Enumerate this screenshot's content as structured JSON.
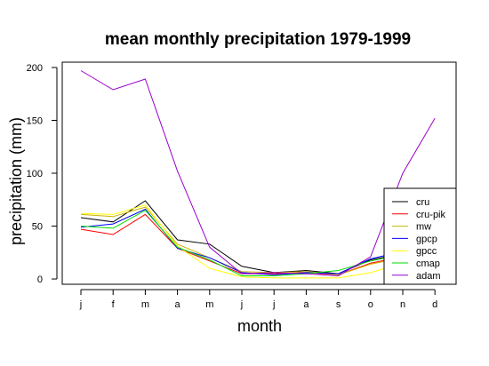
{
  "chart_data": {
    "type": "line",
    "title": "mean monthly precipitation 1979-1999",
    "xlabel": "month",
    "ylabel": "precipitation (mm)",
    "categories": [
      "j",
      "f",
      "m",
      "a",
      "m",
      "j",
      "j",
      "a",
      "s",
      "o",
      "n",
      "d"
    ],
    "yticks": [
      0,
      50,
      100,
      150,
      200
    ],
    "ylim": [
      -5,
      205
    ],
    "legend_position": "bottom-right",
    "grid": false,
    "series": [
      {
        "name": "cru",
        "color": "#000000",
        "values": [
          58,
          54,
          74,
          37,
          33,
          12,
          6,
          8,
          5,
          18,
          24,
          null
        ]
      },
      {
        "name": "cru-pik",
        "color": "#ff0000",
        "values": [
          47,
          42,
          61,
          29,
          17,
          5,
          5,
          6,
          4,
          15,
          21,
          null
        ]
      },
      {
        "name": "mw",
        "color": "#c8b400",
        "values": [
          61,
          59,
          68,
          33,
          20,
          7,
          6,
          7,
          4,
          14,
          20,
          null
        ]
      },
      {
        "name": "gpcp",
        "color": "#0000ff",
        "values": [
          49,
          52,
          66,
          29,
          20,
          6,
          4,
          6,
          5,
          19,
          26,
          null
        ]
      },
      {
        "name": "gpcc",
        "color": "#ffff00",
        "values": [
          62,
          61,
          70,
          31,
          10,
          2,
          1,
          1,
          1,
          6,
          15,
          null
        ]
      },
      {
        "name": "cmap",
        "color": "#00dd00",
        "values": [
          50,
          48,
          65,
          30,
          18,
          3,
          3,
          5,
          8,
          17,
          23,
          null
        ]
      },
      {
        "name": "adam",
        "color": "#9900cc",
        "values": [
          197,
          179,
          189,
          102,
          30,
          5,
          6,
          5,
          3,
          21,
          100,
          152
        ]
      }
    ]
  }
}
